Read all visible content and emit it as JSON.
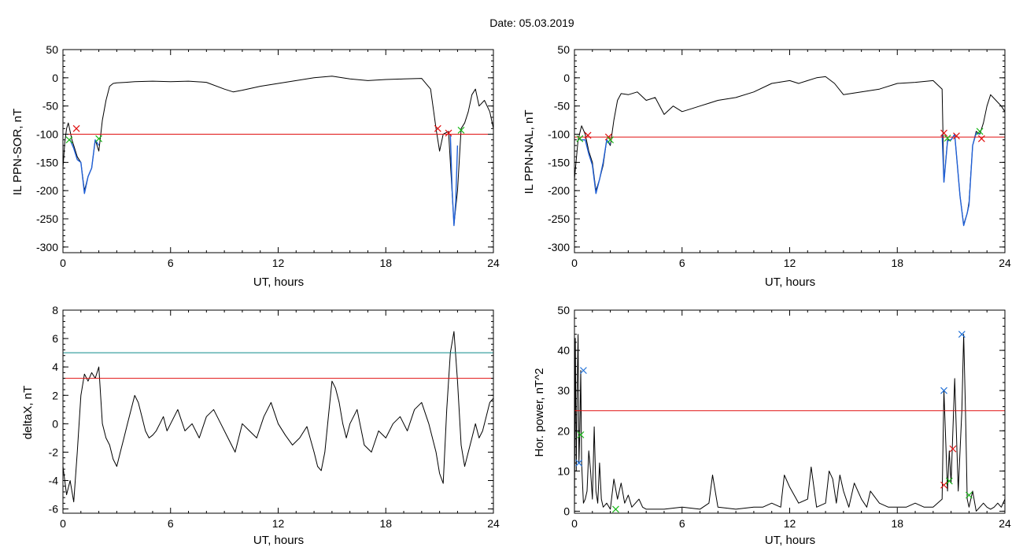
{
  "header": {
    "date_label": "Date:  05.03.2019"
  },
  "colors": {
    "trace": "#000000",
    "substorm": "#1f5fd6",
    "threshold": "#e01010",
    "threshold2": "#0e8a8a",
    "onset": "#e01010",
    "end": "#18b818",
    "peak": "#1f6fd6"
  },
  "chart_data": [
    {
      "type": "line",
      "title": "",
      "xlabel": "UT, hours",
      "ylabel": "IL PPN-SOR, nT",
      "xlim": [
        0,
        24
      ],
      "ylim": [
        -310,
        50
      ],
      "xticks": [
        0,
        6,
        12,
        18,
        24
      ],
      "xtick_labels": [
        "0",
        "6",
        "12",
        "18",
        "24"
      ],
      "yticks": [
        -300,
        -250,
        -200,
        -150,
        -100,
        -50,
        0,
        50
      ],
      "ytick_labels": [
        "-300",
        "-250",
        "-200",
        "-150",
        "-100",
        "-50",
        "0",
        "50"
      ],
      "series": [
        {
          "role": "trace",
          "x": [
            0,
            0.1,
            0.2,
            0.3,
            0.4,
            0.5,
            0.6,
            0.8,
            1.0,
            1.2,
            1.4,
            1.6,
            1.8,
            2.0,
            2.2,
            2.4,
            2.6,
            2.8,
            3.0,
            3.5,
            4.0,
            5.0,
            6.0,
            7.0,
            8.0,
            9.0,
            9.5,
            10.0,
            11.0,
            12.0,
            13.0,
            14.0,
            15.0,
            16.0,
            17.0,
            18.0,
            19.0,
            20.0,
            20.5,
            20.8,
            21.0,
            21.2,
            21.5,
            21.6,
            21.8,
            22.0,
            22.2,
            22.4,
            22.6,
            22.8,
            23.0,
            23.2,
            23.5,
            23.8,
            24.0
          ],
          "y": [
            -160,
            -115,
            -90,
            -80,
            -95,
            -110,
            -120,
            -140,
            -150,
            -200,
            -175,
            -160,
            -110,
            -130,
            -75,
            -40,
            -15,
            -10,
            -9,
            -8,
            -7,
            -6,
            -7,
            -6,
            -8,
            -20,
            -25,
            -22,
            -15,
            -10,
            -5,
            0,
            3,
            -2,
            -5,
            -3,
            -2,
            -1,
            -20,
            -90,
            -130,
            -100,
            -95,
            -150,
            -260,
            -200,
            -90,
            -80,
            -60,
            -30,
            -20,
            -50,
            -40,
            -60,
            -90
          ]
        },
        {
          "role": "substorm",
          "x": [
            0.4,
            0.6,
            0.8,
            1.0,
            1.2,
            1.4,
            1.6,
            1.8,
            2.0
          ],
          "y": [
            -110,
            -125,
            -145,
            -150,
            -205,
            -175,
            -160,
            -110,
            -120
          ]
        },
        {
          "role": "substorm",
          "x": [
            21.6,
            21.7,
            21.8,
            21.9,
            22.0
          ],
          "y": [
            -100,
            -200,
            -262,
            -220,
            -120
          ]
        }
      ],
      "threshold_lines": [
        {
          "y": -100,
          "color_role": "threshold"
        }
      ],
      "markers": [
        {
          "x": 0.35,
          "y": -110,
          "type": "end"
        },
        {
          "x": 0.75,
          "y": -90,
          "type": "onset"
        },
        {
          "x": 2.0,
          "y": -108,
          "type": "end"
        },
        {
          "x": 20.9,
          "y": -90,
          "type": "onset"
        },
        {
          "x": 21.5,
          "y": -98,
          "type": "onset"
        },
        {
          "x": 22.2,
          "y": -93,
          "type": "end"
        }
      ]
    },
    {
      "type": "line",
      "title": "",
      "xlabel": "UT, hours",
      "ylabel": "IL PPN-NAL, nT",
      "xlim": [
        0,
        24
      ],
      "ylim": [
        -310,
        50
      ],
      "xticks": [
        0,
        6,
        12,
        18,
        24
      ],
      "xtick_labels": [
        "0",
        "6",
        "12",
        "18",
        "24"
      ],
      "yticks": [
        -300,
        -250,
        -200,
        -150,
        -100,
        -50,
        0,
        50
      ],
      "ytick_labels": [
        "-300",
        "-250",
        "-200",
        "-150",
        "-100",
        "-50",
        "0",
        "50"
      ],
      "series": [
        {
          "role": "trace",
          "x": [
            0,
            0.2,
            0.4,
            0.6,
            0.8,
            1.0,
            1.2,
            1.4,
            1.6,
            1.8,
            2.0,
            2.2,
            2.4,
            2.6,
            3.0,
            3.5,
            4.0,
            4.5,
            5.0,
            5.5,
            6.0,
            6.5,
            7.0,
            7.5,
            8.0,
            9.0,
            10.0,
            11.0,
            12.0,
            12.5,
            13.0,
            13.5,
            14.0,
            14.5,
            15.0,
            16.0,
            17.0,
            18.0,
            19.0,
            20.0,
            20.5,
            20.6,
            20.8,
            21.0,
            21.2,
            21.5,
            21.7,
            21.9,
            22.0,
            22.2,
            22.4,
            22.6,
            22.8,
            23.0,
            23.2,
            23.5,
            23.8,
            24.0
          ],
          "y": [
            -180,
            -110,
            -85,
            -100,
            -130,
            -150,
            -200,
            -180,
            -155,
            -110,
            -120,
            -75,
            -40,
            -28,
            -30,
            -25,
            -40,
            -35,
            -65,
            -50,
            -60,
            -55,
            -50,
            -45,
            -40,
            -35,
            -25,
            -10,
            -5,
            -10,
            -5,
            0,
            2,
            -10,
            -30,
            -25,
            -20,
            -10,
            -8,
            -5,
            -20,
            -185,
            -110,
            -110,
            -100,
            -210,
            -260,
            -240,
            -220,
            -120,
            -95,
            -100,
            -80,
            -50,
            -30,
            -40,
            -50,
            -60
          ]
        },
        {
          "role": "substorm",
          "x": [
            0.3,
            0.6,
            0.8,
            1.0,
            1.2,
            1.4,
            1.6,
            1.8,
            2.0
          ],
          "y": [
            -110,
            -110,
            -135,
            -155,
            -205,
            -180,
            -150,
            -110,
            -118
          ]
        },
        {
          "role": "substorm",
          "x": [
            20.5,
            20.6,
            20.8,
            21.0,
            21.2,
            21.5,
            21.7,
            21.9,
            22.0,
            22.2,
            22.4,
            22.6
          ],
          "y": [
            -100,
            -185,
            -112,
            -110,
            -100,
            -210,
            -262,
            -240,
            -225,
            -120,
            -98,
            -100
          ]
        }
      ],
      "threshold_lines": [
        {
          "y": -105,
          "color_role": "threshold"
        }
      ],
      "markers": [
        {
          "x": 0.3,
          "y": -108,
          "type": "end"
        },
        {
          "x": 0.75,
          "y": -102,
          "type": "onset"
        },
        {
          "x": 1.9,
          "y": -105,
          "type": "onset"
        },
        {
          "x": 2.0,
          "y": -110,
          "type": "end"
        },
        {
          "x": 20.6,
          "y": -98,
          "type": "onset"
        },
        {
          "x": 20.8,
          "y": -107,
          "type": "end"
        },
        {
          "x": 21.3,
          "y": -103,
          "type": "onset"
        },
        {
          "x": 22.6,
          "y": -95,
          "type": "end"
        },
        {
          "x": 22.7,
          "y": -108,
          "type": "onset"
        }
      ]
    },
    {
      "type": "line",
      "title": "",
      "xlabel": "UT, hours",
      "ylabel": "deltaX, nT",
      "xlim": [
        0,
        24
      ],
      "ylim": [
        -6.3,
        8
      ],
      "xticks": [
        0,
        6,
        12,
        18,
        24
      ],
      "xtick_labels": [
        "0",
        "6",
        "12",
        "18",
        "24"
      ],
      "yticks": [
        -6,
        -4,
        -2,
        0,
        2,
        4,
        6,
        8
      ],
      "ytick_labels": [
        "-6",
        "-4",
        "-2",
        "0",
        "2",
        "4",
        "6",
        "8"
      ],
      "series": [
        {
          "role": "trace",
          "x": [
            0,
            0.2,
            0.4,
            0.6,
            0.8,
            1.0,
            1.2,
            1.4,
            1.6,
            1.8,
            2.0,
            2.2,
            2.4,
            2.6,
            2.8,
            3.0,
            3.2,
            3.4,
            3.6,
            3.8,
            4.0,
            4.2,
            4.4,
            4.6,
            4.8,
            5.0,
            5.2,
            5.4,
            5.6,
            5.8,
            6.0,
            6.4,
            6.8,
            7.2,
            7.6,
            8.0,
            8.4,
            8.8,
            9.2,
            9.6,
            10.0,
            10.4,
            10.8,
            11.2,
            11.6,
            12.0,
            12.4,
            12.8,
            13.2,
            13.6,
            14.0,
            14.2,
            14.4,
            14.6,
            14.8,
            15.0,
            15.2,
            15.4,
            15.6,
            15.8,
            16.0,
            16.4,
            16.8,
            17.2,
            17.6,
            18.0,
            18.4,
            18.8,
            19.2,
            19.6,
            20.0,
            20.4,
            20.8,
            21.0,
            21.2,
            21.4,
            21.6,
            21.8,
            22.0,
            22.2,
            22.4,
            22.6,
            22.8,
            23.0,
            23.2,
            23.4,
            23.6,
            23.8,
            24.0
          ],
          "y": [
            -3,
            -5,
            -4,
            -5.5,
            -2,
            2,
            3.5,
            3,
            3.6,
            3.2,
            4,
            0,
            -1,
            -1.5,
            -2.5,
            -3,
            -2,
            -1,
            0,
            1,
            2,
            1.5,
            0.5,
            -0.5,
            -1,
            -0.8,
            -0.5,
            0,
            0.5,
            -0.5,
            0,
            1,
            -0.5,
            0,
            -1,
            0.5,
            1,
            0,
            -1,
            -2,
            0,
            -0.5,
            -1,
            0.5,
            1.5,
            0,
            -0.8,
            -1.5,
            -1,
            -0.2,
            -2,
            -3,
            -3.3,
            -2,
            0.5,
            3,
            2.5,
            1.5,
            0,
            -1,
            0,
            1,
            -1.5,
            -2,
            -0.5,
            -1,
            0,
            0.5,
            -0.5,
            1,
            1.5,
            0,
            -2,
            -3.5,
            -4.2,
            1,
            5,
            6.5,
            3,
            -1.5,
            -3,
            -2,
            -1,
            0,
            -1,
            -0.5,
            0.5,
            1.5,
            1.8
          ]
        }
      ],
      "threshold_lines": [
        {
          "y": 5,
          "color_role": "threshold2"
        },
        {
          "y": 3.2,
          "color_role": "threshold"
        }
      ],
      "markers": []
    },
    {
      "type": "line",
      "title": "",
      "xlabel": "UT, hours",
      "ylabel": "Hor. power, nT^2",
      "xlim": [
        0,
        24
      ],
      "ylim": [
        -0.5,
        50
      ],
      "xticks": [
        0,
        6,
        12,
        18,
        24
      ],
      "xtick_labels": [
        "0",
        "6",
        "12",
        "18",
        "24"
      ],
      "yticks": [
        0,
        10,
        20,
        30,
        40,
        50
      ],
      "ytick_labels": [
        "0",
        "10",
        "20",
        "30",
        "40",
        "50"
      ],
      "series": [
        {
          "role": "trace",
          "x": [
            0,
            0.05,
            0.1,
            0.15,
            0.2,
            0.25,
            0.3,
            0.35,
            0.4,
            0.5,
            0.6,
            0.7,
            0.8,
            0.9,
            1.0,
            1.1,
            1.2,
            1.3,
            1.4,
            1.5,
            1.6,
            1.8,
            2.0,
            2.2,
            2.4,
            2.6,
            2.8,
            3.0,
            3.2,
            3.4,
            3.6,
            3.8,
            4.0,
            4.5,
            5.0,
            6.0,
            7.0,
            7.5,
            7.7,
            8.0,
            9.0,
            10.0,
            10.5,
            11.0,
            11.5,
            11.7,
            12.0,
            12.5,
            13.0,
            13.2,
            13.5,
            14.0,
            14.2,
            14.4,
            14.6,
            14.8,
            15.0,
            15.3,
            15.6,
            16.0,
            16.3,
            16.5,
            17.0,
            17.5,
            18.0,
            18.5,
            19.0,
            19.5,
            20.0,
            20.5,
            20.6,
            20.8,
            20.9,
            21.0,
            21.2,
            21.4,
            21.6,
            21.7,
            21.8,
            21.9,
            22.0,
            22.2,
            22.4,
            22.6,
            22.8,
            23.0,
            23.2,
            23.4,
            23.6,
            23.8,
            24.0
          ],
          "y": [
            0,
            43,
            10,
            30,
            44,
            12,
            20,
            35,
            12,
            2,
            3,
            5,
            15,
            10,
            3,
            21,
            5,
            2,
            12,
            3,
            1,
            2,
            0.5,
            8,
            3,
            7,
            2,
            4,
            1,
            2,
            3,
            1,
            0.5,
            0.5,
            0.5,
            1,
            0.5,
            2,
            9,
            1,
            0.5,
            1,
            1,
            2,
            1,
            9,
            6,
            2,
            3,
            11,
            1,
            2,
            10,
            8,
            2,
            9,
            5,
            1,
            7,
            3,
            1,
            5,
            2,
            1,
            1,
            1,
            2,
            1,
            1,
            3,
            30,
            5,
            15,
            7,
            33,
            5,
            25,
            44,
            25,
            3,
            1,
            5,
            0,
            1,
            2,
            1,
            0.5,
            1,
            2,
            1,
            3
          ]
        }
      ],
      "threshold_lines": [
        {
          "y": 25,
          "color_role": "threshold"
        }
      ],
      "markers": [
        {
          "x": 0.25,
          "y": 12,
          "type": "peak"
        },
        {
          "x": 0.5,
          "y": 35,
          "type": "peak"
        },
        {
          "x": 0.35,
          "y": 19,
          "type": "end"
        },
        {
          "x": 2.3,
          "y": 0.5,
          "type": "end"
        },
        {
          "x": 20.6,
          "y": 30,
          "type": "peak"
        },
        {
          "x": 20.6,
          "y": 6.5,
          "type": "onset"
        },
        {
          "x": 20.9,
          "y": 7.5,
          "type": "end"
        },
        {
          "x": 21.1,
          "y": 15.5,
          "type": "onset"
        },
        {
          "x": 21.6,
          "y": 44,
          "type": "peak"
        },
        {
          "x": 22.0,
          "y": 4,
          "type": "end"
        }
      ]
    }
  ]
}
